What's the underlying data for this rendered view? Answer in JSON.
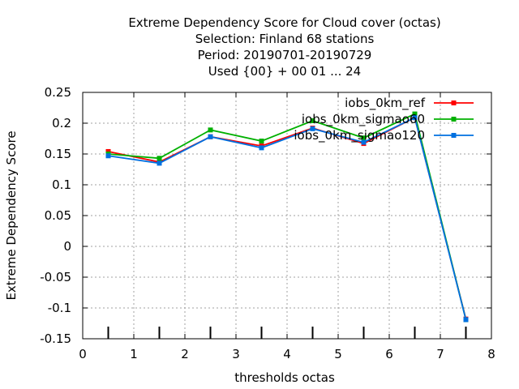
{
  "chart_data": {
    "type": "line",
    "title_lines": [
      "Extreme Dependency Score  for Cloud cover (octas)",
      "Selection: Finland     68 stations",
      "Period: 20190701-20190729",
      "Used {00} + 00 01 ... 24"
    ],
    "xlabel": "thresholds octas",
    "ylabel": "Extreme Dependency Score",
    "xlim": [
      0,
      8
    ],
    "ylim": [
      -0.15,
      0.25
    ],
    "xticks": [
      0,
      1,
      2,
      3,
      4,
      5,
      6,
      7,
      8
    ],
    "xtick_labels": [
      "0",
      "1",
      "2",
      "3",
      "4",
      "5",
      "6",
      "7",
      "8"
    ],
    "yticks": [
      -0.15,
      -0.1,
      -0.05,
      0,
      0.05,
      0.1,
      0.15,
      0.2,
      0.25
    ],
    "ytick_labels": [
      "-0.15",
      "-0.1",
      "-0.05",
      "0",
      "0.05",
      "0.1",
      "0.15",
      "0.2",
      "0.25"
    ],
    "grid": true,
    "legend_position": "top-right",
    "bottom_marks_x": [
      0.5,
      1.5,
      2.5,
      3.5,
      4.5,
      5.5,
      6.5,
      7.5
    ],
    "x": [
      0.5,
      1.5,
      2.5,
      3.5,
      4.5,
      5.5,
      6.5,
      7.5
    ],
    "series": [
      {
        "name": "iobs_0km_ref",
        "color": "#ff0000",
        "values": [
          0.154,
          0.137,
          0.178,
          0.163,
          0.192,
          0.167,
          0.209,
          -0.118
        ]
      },
      {
        "name": "iobs_0km_sigmao60",
        "color": "#00b000",
        "values": [
          0.15,
          0.143,
          0.189,
          0.171,
          0.204,
          0.176,
          0.215,
          -0.119
        ]
      },
      {
        "name": "iobs_0km_sigmao120",
        "color": "#0070e0",
        "values": [
          0.147,
          0.135,
          0.178,
          0.16,
          0.191,
          0.169,
          0.209,
          -0.119
        ]
      }
    ]
  }
}
